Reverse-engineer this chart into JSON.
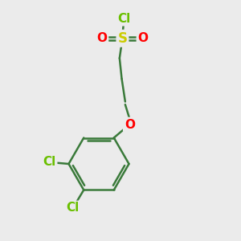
{
  "background_color": "#ebebeb",
  "bond_color": "#3a7a3a",
  "bond_width": 1.8,
  "atom_colors": {
    "Cl_sulfonyl": "#6abf00",
    "S": "#cccc00",
    "O": "#ff0000",
    "Cl_ring": "#6abf00"
  },
  "font_size": 10,
  "fig_size": [
    3.0,
    3.0
  ],
  "dpi": 100,
  "xlim": [
    0,
    10
  ],
  "ylim": [
    0,
    10
  ]
}
